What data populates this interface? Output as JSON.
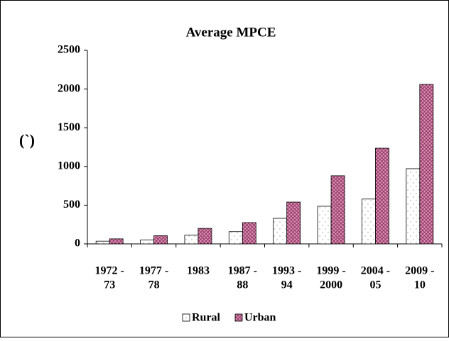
{
  "chart_data": {
    "type": "bar",
    "title": "Average MPCE",
    "y_label": "(`)",
    "categories": [
      [
        "1972 -",
        "73"
      ],
      [
        "1977 -",
        "78"
      ],
      [
        "1983"
      ],
      [
        "1987 -",
        "88"
      ],
      [
        "1993 -",
        "94"
      ],
      [
        "1999 -",
        "2000"
      ],
      [
        "2004 -",
        "05"
      ],
      [
        "2009 -",
        "10"
      ]
    ],
    "series": [
      {
        "name": "Rural",
        "color": "#ffffff",
        "values": [
          35,
          50,
          112,
          158,
          330,
          486,
          579,
          971
        ]
      },
      {
        "name": "Urban",
        "color": "#d990b4",
        "values": [
          65,
          105,
          200,
          275,
          540,
          880,
          1236,
          2060
        ]
      }
    ],
    "ylim": [
      0,
      2500
    ],
    "yticks": [
      0,
      500,
      1000,
      1500,
      2000,
      2500
    ],
    "legend": "bottom"
  }
}
